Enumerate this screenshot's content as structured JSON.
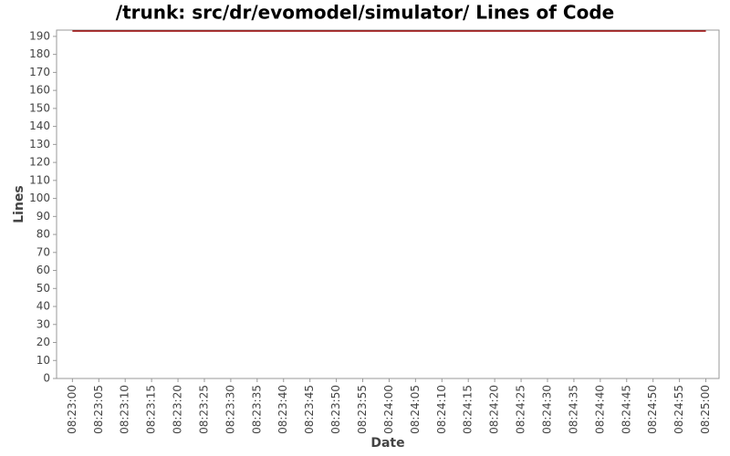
{
  "chart_data": {
    "type": "line",
    "title": "/trunk: src/dr/evomodel/simulator/ Lines of Code",
    "x_label": "Date",
    "y_label": "Lines",
    "x": [
      "08:23:00",
      "08:25:00"
    ],
    "series": [
      {
        "name": "Lines",
        "color": "#990000",
        "values": [
          193,
          193
        ]
      }
    ],
    "xlim": [
      "08:22:57",
      "08:25:02.5"
    ],
    "xticks": [
      "08:23:00",
      "08:23:05",
      "08:23:10",
      "08:23:15",
      "08:23:20",
      "08:23:25",
      "08:23:30",
      "08:23:35",
      "08:23:40",
      "08:23:45",
      "08:23:50",
      "08:23:55",
      "08:24:00",
      "08:24:05",
      "08:24:10",
      "08:24:15",
      "08:24:20",
      "08:24:25",
      "08:24:30",
      "08:24:35",
      "08:24:40",
      "08:24:45",
      "08:24:50",
      "08:24:55",
      "08:25:00"
    ],
    "ylim": [
      0,
      193.5
    ],
    "yticks": [
      0,
      10,
      20,
      30,
      40,
      50,
      60,
      70,
      80,
      90,
      100,
      110,
      120,
      130,
      140,
      150,
      160,
      170,
      180,
      190
    ],
    "grid": false
  }
}
